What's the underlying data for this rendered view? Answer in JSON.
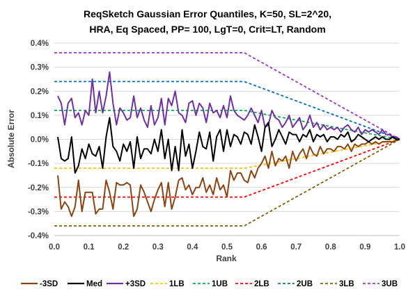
{
  "chart_data": {
    "type": "line",
    "title_lines": [
      "ReqSketch Gaussian Error Quantiles, K=50, SL=2^20,",
      "HRA, Eq Spaced, PP= 100, LgT=0, Crit=LT, Random"
    ],
    "xlabel": "Rank",
    "ylabel": "Absolute Error",
    "xlim": [
      0.0,
      1.0
    ],
    "ylim": [
      -0.4,
      0.4
    ],
    "x_ticks": [
      "0.0",
      "0.1",
      "0.2",
      "0.3",
      "0.4",
      "0.5",
      "0.6",
      "0.7",
      "0.8",
      "0.9",
      "1.0"
    ],
    "y_ticks": [
      "0.4%",
      "0.3%",
      "0.2%",
      "0.1%",
      "0.0%",
      "-0.1%",
      "-0.2%",
      "-0.3%",
      "-0.4%"
    ],
    "y_unit": "%",
    "grid": "horizontal",
    "legend_position": "bottom",
    "series": [
      {
        "name": "-3SD",
        "color": "#8B4513",
        "style": "solid",
        "x": [
          0.01,
          0.02,
          0.03,
          0.04,
          0.05,
          0.06,
          0.07,
          0.08,
          0.09,
          0.1,
          0.11,
          0.12,
          0.13,
          0.14,
          0.15,
          0.16,
          0.17,
          0.18,
          0.19,
          0.2,
          0.21,
          0.22,
          0.23,
          0.24,
          0.25,
          0.26,
          0.27,
          0.28,
          0.29,
          0.3,
          0.31,
          0.32,
          0.33,
          0.34,
          0.35,
          0.36,
          0.37,
          0.38,
          0.39,
          0.4,
          0.41,
          0.42,
          0.43,
          0.44,
          0.45,
          0.46,
          0.47,
          0.48,
          0.49,
          0.5,
          0.51,
          0.52,
          0.53,
          0.54,
          0.55,
          0.56,
          0.57,
          0.58,
          0.59,
          0.6,
          0.61,
          0.62,
          0.63,
          0.64,
          0.65,
          0.66,
          0.67,
          0.68,
          0.69,
          0.7,
          0.71,
          0.72,
          0.73,
          0.74,
          0.75,
          0.76,
          0.77,
          0.78,
          0.79,
          0.8,
          0.81,
          0.82,
          0.83,
          0.84,
          0.85,
          0.86,
          0.87,
          0.88,
          0.89,
          0.9,
          0.91,
          0.92,
          0.93,
          0.94,
          0.95,
          0.96,
          0.97,
          0.98,
          0.99,
          1.0
        ],
        "y": [
          -0.15,
          -0.29,
          -0.26,
          -0.28,
          -0.32,
          -0.28,
          -0.17,
          -0.3,
          -0.22,
          -0.22,
          -0.22,
          -0.31,
          -0.29,
          -0.29,
          -0.17,
          -0.22,
          -0.29,
          -0.18,
          -0.19,
          -0.19,
          -0.18,
          -0.19,
          -0.32,
          -0.29,
          -0.19,
          -0.22,
          -0.26,
          -0.3,
          -0.25,
          -0.21,
          -0.18,
          -0.28,
          -0.18,
          -0.29,
          -0.24,
          -0.17,
          -0.16,
          -0.21,
          -0.19,
          -0.23,
          -0.2,
          -0.2,
          -0.16,
          -0.22,
          -0.19,
          -0.23,
          -0.16,
          -0.21,
          -0.19,
          -0.24,
          -0.13,
          -0.17,
          -0.14,
          -0.14,
          -0.17,
          -0.18,
          -0.13,
          -0.16,
          -0.12,
          -0.1,
          -0.07,
          -0.12,
          -0.05,
          -0.11,
          -0.08,
          -0.09,
          -0.07,
          -0.12,
          -0.05,
          -0.09,
          -0.06,
          -0.04,
          -0.08,
          -0.03,
          -0.06,
          -0.07,
          -0.03,
          -0.06,
          -0.04,
          -0.04,
          -0.05,
          -0.03,
          -0.03,
          -0.04,
          -0.02,
          -0.05,
          -0.02,
          -0.03,
          -0.02,
          -0.02,
          -0.01,
          -0.02,
          -0.01,
          -0.02,
          -0.01,
          -0.01,
          -0.01,
          -0.01,
          -0.005,
          0.0
        ]
      },
      {
        "name": "Med",
        "color": "#000000",
        "style": "solid",
        "x": [
          0.01,
          0.02,
          0.03,
          0.04,
          0.05,
          0.06,
          0.07,
          0.08,
          0.09,
          0.1,
          0.11,
          0.12,
          0.13,
          0.14,
          0.15,
          0.16,
          0.17,
          0.18,
          0.19,
          0.2,
          0.21,
          0.22,
          0.23,
          0.24,
          0.25,
          0.26,
          0.27,
          0.28,
          0.29,
          0.3,
          0.31,
          0.32,
          0.33,
          0.34,
          0.35,
          0.36,
          0.37,
          0.38,
          0.39,
          0.4,
          0.41,
          0.42,
          0.43,
          0.44,
          0.45,
          0.46,
          0.47,
          0.48,
          0.49,
          0.5,
          0.51,
          0.52,
          0.53,
          0.54,
          0.55,
          0.56,
          0.57,
          0.58,
          0.59,
          0.6,
          0.61,
          0.62,
          0.63,
          0.64,
          0.65,
          0.66,
          0.67,
          0.68,
          0.69,
          0.7,
          0.71,
          0.72,
          0.73,
          0.74,
          0.75,
          0.76,
          0.77,
          0.78,
          0.79,
          0.8,
          0.81,
          0.82,
          0.83,
          0.84,
          0.85,
          0.86,
          0.87,
          0.88,
          0.89,
          0.9,
          0.91,
          0.92,
          0.93,
          0.94,
          0.95,
          0.96,
          0.97,
          0.98,
          0.99,
          1.0
        ],
        "y": [
          0.01,
          -0.08,
          -0.09,
          -0.08,
          0.01,
          -0.14,
          -0.11,
          -0.04,
          -0.08,
          -0.02,
          -0.06,
          -0.07,
          -0.03,
          -0.12,
          0.01,
          0.09,
          -0.03,
          -0.05,
          -0.09,
          -0.02,
          -0.05,
          -0.01,
          -0.12,
          0.01,
          -0.08,
          -0.04,
          -0.04,
          -0.06,
          0.0,
          -0.05,
          0.04,
          -0.08,
          0.0,
          -0.13,
          -0.03,
          -0.13,
          0.04,
          -0.07,
          -0.02,
          -0.12,
          -0.05,
          0.03,
          -0.03,
          -0.04,
          0.03,
          -0.09,
          0.01,
          0.04,
          -0.05,
          0.04,
          -0.03,
          0.02,
          0.01,
          -0.02,
          0.03,
          0.02,
          -0.02,
          0.06,
          0.01,
          -0.05,
          0.05,
          0.07,
          -0.03,
          0.0,
          0.04,
          0.01,
          -0.02,
          0.03,
          0.02,
          0.02,
          -0.01,
          0.02,
          0.01,
          0.04,
          -0.01,
          0.02,
          0.01,
          0.02,
          -0.01,
          0.01,
          0.01,
          0.0,
          0.02,
          0.01,
          0.03,
          -0.01,
          0.0,
          0.02,
          0.01,
          0.0,
          -0.01,
          0.0,
          0.01,
          0.0,
          0.01,
          0.0,
          0.0,
          0.01,
          0.0,
          0.0
        ]
      },
      {
        "name": "+3SD",
        "color": "#7030A0",
        "style": "solid",
        "x": [
          0.01,
          0.02,
          0.03,
          0.04,
          0.05,
          0.06,
          0.07,
          0.08,
          0.09,
          0.1,
          0.11,
          0.12,
          0.13,
          0.14,
          0.15,
          0.16,
          0.17,
          0.18,
          0.19,
          0.2,
          0.21,
          0.22,
          0.23,
          0.24,
          0.25,
          0.26,
          0.27,
          0.28,
          0.29,
          0.3,
          0.31,
          0.32,
          0.33,
          0.34,
          0.35,
          0.36,
          0.37,
          0.38,
          0.39,
          0.4,
          0.41,
          0.42,
          0.43,
          0.44,
          0.45,
          0.46,
          0.47,
          0.48,
          0.49,
          0.5,
          0.51,
          0.52,
          0.53,
          0.54,
          0.55,
          0.56,
          0.57,
          0.58,
          0.59,
          0.6,
          0.61,
          0.62,
          0.63,
          0.64,
          0.65,
          0.66,
          0.67,
          0.68,
          0.69,
          0.7,
          0.71,
          0.72,
          0.73,
          0.74,
          0.75,
          0.76,
          0.77,
          0.78,
          0.79,
          0.8,
          0.81,
          0.82,
          0.83,
          0.84,
          0.85,
          0.86,
          0.87,
          0.88,
          0.89,
          0.9,
          0.91,
          0.92,
          0.93,
          0.94,
          0.95,
          0.96,
          0.97,
          0.98,
          0.99,
          1.0
        ],
        "y": [
          0.18,
          0.15,
          0.06,
          0.15,
          0.17,
          0.09,
          0.11,
          0.06,
          0.12,
          0.1,
          0.25,
          0.11,
          0.2,
          0.11,
          0.18,
          0.28,
          0.15,
          0.06,
          0.13,
          0.11,
          0.08,
          0.09,
          0.18,
          0.09,
          0.13,
          0.08,
          0.05,
          0.14,
          0.06,
          0.09,
          0.17,
          0.06,
          0.17,
          0.14,
          0.2,
          0.11,
          0.1,
          0.07,
          0.15,
          0.16,
          0.1,
          0.15,
          0.13,
          0.07,
          0.15,
          0.11,
          0.12,
          0.09,
          0.14,
          0.09,
          0.18,
          0.12,
          0.1,
          0.09,
          0.08,
          0.1,
          0.13,
          0.1,
          0.07,
          0.12,
          0.05,
          0.06,
          0.12,
          0.09,
          0.08,
          0.05,
          0.07,
          0.1,
          0.05,
          0.07,
          0.09,
          0.04,
          0.06,
          0.1,
          0.05,
          0.07,
          0.04,
          0.06,
          0.04,
          0.05,
          0.04,
          0.05,
          0.03,
          0.05,
          0.06,
          0.04,
          0.03,
          0.05,
          0.02,
          0.04,
          0.03,
          0.04,
          0.03,
          0.02,
          0.04,
          0.02,
          0.02,
          0.01,
          0.01,
          0.0
        ]
      },
      {
        "name": "1LB",
        "color": "#FFC000",
        "style": "dashed",
        "x": [
          0.0,
          0.55,
          1.0
        ],
        "y": [
          -0.12,
          -0.12,
          0.0
        ]
      },
      {
        "name": "1UB",
        "color": "#00B050",
        "style": "dashed",
        "x": [
          0.0,
          0.55,
          1.0
        ],
        "y": [
          0.12,
          0.12,
          0.0
        ]
      },
      {
        "name": "2LB",
        "color": "#FF0000",
        "style": "dashed",
        "x": [
          0.0,
          0.55,
          1.0
        ],
        "y": [
          -0.24,
          -0.24,
          0.0
        ]
      },
      {
        "name": "2UB",
        "color": "#0070C0",
        "style": "dashed",
        "x": [
          0.0,
          0.55,
          1.0
        ],
        "y": [
          0.24,
          0.24,
          0.0
        ]
      },
      {
        "name": "3LB",
        "color": "#806000",
        "style": "dashed",
        "x": [
          0.0,
          0.55,
          1.0
        ],
        "y": [
          -0.36,
          -0.36,
          0.0
        ]
      },
      {
        "name": "3UB",
        "color": "#9933CC",
        "style": "dashed",
        "x": [
          0.0,
          0.55,
          1.0
        ],
        "y": [
          0.36,
          0.36,
          0.0
        ]
      }
    ]
  }
}
